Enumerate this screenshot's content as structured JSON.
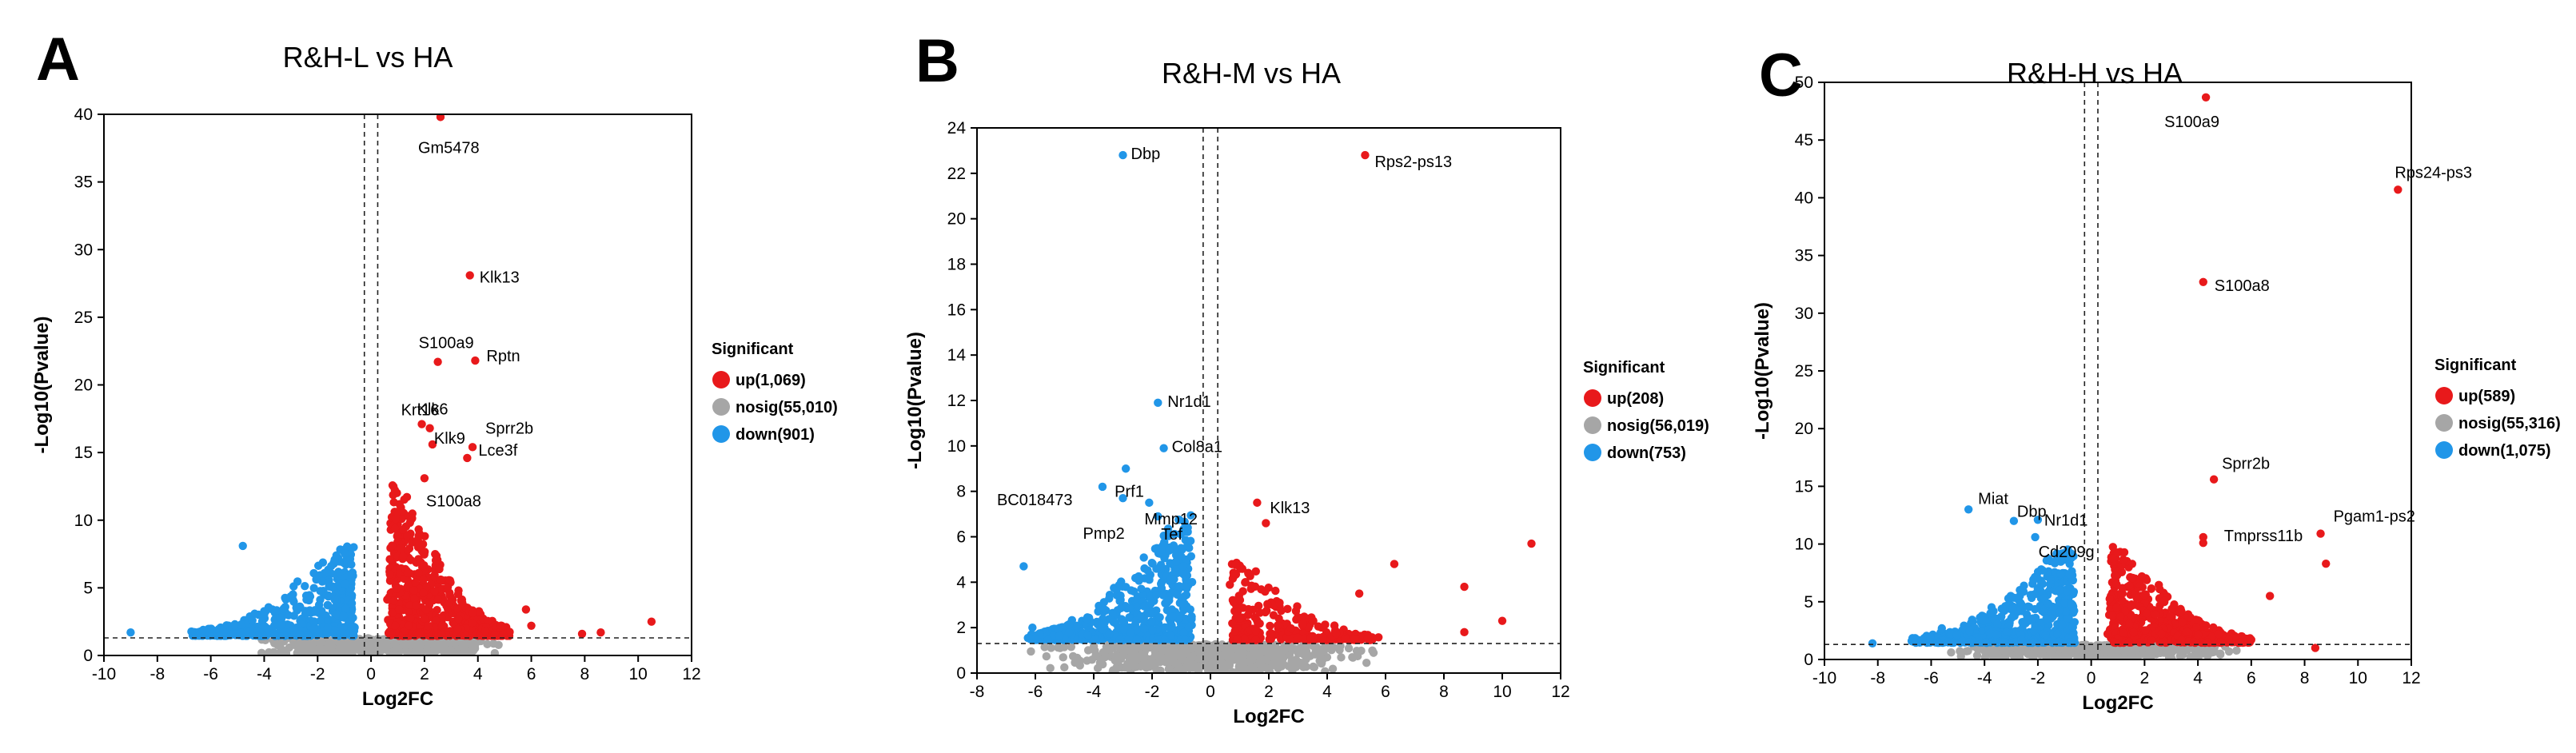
{
  "colors": {
    "up": "#e8191b",
    "nosig": "#a6a6a6",
    "down": "#2196e8"
  },
  "chart_data": [
    {
      "panel": "A",
      "type": "scatter",
      "title": "R&H-L vs HA",
      "xlabel": "Log2FC",
      "ylabel": "-Log10(Pvalue)",
      "xlim": [
        -10,
        12
      ],
      "ylim": [
        0,
        40
      ],
      "xticks": [
        -10,
        -8,
        -6,
        -4,
        -2,
        0,
        2,
        4,
        6,
        8,
        10,
        12
      ],
      "yticks": [
        0,
        5,
        10,
        15,
        20,
        25,
        30,
        35,
        40
      ],
      "fc_threshold": 0.25,
      "p_threshold": 1.3,
      "legend": {
        "title": "Significant",
        "items": [
          {
            "label": "up(1,069)",
            "group": "up"
          },
          {
            "label": "nosig(55,010)",
            "group": "nosig"
          },
          {
            "label": "down(901)",
            "group": "down"
          }
        ]
      },
      "labeled_genes": [
        {
          "name": "Gm5478",
          "x": 2.6,
          "y": 39.8,
          "group": "up"
        },
        {
          "name": "Klk13",
          "x": 3.7,
          "y": 28.1,
          "group": "up"
        },
        {
          "name": "S100a9",
          "x": 2.5,
          "y": 21.7,
          "group": "up"
        },
        {
          "name": "Rptn",
          "x": 3.9,
          "y": 21.8,
          "group": "up"
        },
        {
          "name": "Krt16",
          "x": 1.9,
          "y": 17.1,
          "group": "up"
        },
        {
          "name": "Klk6",
          "x": 2.2,
          "y": 16.8,
          "group": "up"
        },
        {
          "name": "Klk9",
          "x": 2.3,
          "y": 15.6,
          "group": "up"
        },
        {
          "name": "Sprr2b",
          "x": 3.8,
          "y": 15.4,
          "group": "up"
        },
        {
          "name": "Lce3f",
          "x": 3.6,
          "y": 14.6,
          "group": "up"
        },
        {
          "name": "S100a8",
          "x": 2.0,
          "y": 13.1,
          "group": "up"
        }
      ],
      "extra_points": [
        {
          "x": -9.0,
          "y": 1.7,
          "group": "down"
        },
        {
          "x": -4.8,
          "y": 8.1,
          "group": "down"
        },
        {
          "x": 10.5,
          "y": 2.5,
          "group": "up"
        },
        {
          "x": 8.6,
          "y": 1.7,
          "group": "up"
        },
        {
          "x": 7.9,
          "y": 1.6,
          "group": "up"
        },
        {
          "x": 6.0,
          "y": 2.2,
          "group": "up"
        },
        {
          "x": 5.8,
          "y": 3.4,
          "group": "up"
        }
      ],
      "cloud": {
        "seed": 11,
        "up": {
          "n": 700,
          "xmax": 5.0,
          "ymax": 12.5
        },
        "down": {
          "n": 520,
          "xmin": -6.5,
          "ymax": 8.0
        },
        "nosig": {
          "n": 650,
          "xmin": -5.0,
          "xmax": 5.5
        }
      }
    },
    {
      "panel": "B",
      "type": "scatter",
      "title": "R&H-M vs HA",
      "xlabel": "Log2FC",
      "ylabel": "-Log10(Pvalue)",
      "xlim": [
        -8,
        12
      ],
      "ylim": [
        0,
        24
      ],
      "xticks": [
        -8,
        -6,
        -4,
        -2,
        0,
        2,
        4,
        6,
        8,
        10,
        12
      ],
      "yticks": [
        0,
        2,
        4,
        6,
        8,
        10,
        12,
        14,
        16,
        18,
        20,
        22,
        24
      ],
      "fc_threshold": 0.25,
      "p_threshold": 1.3,
      "legend": {
        "title": "Significant",
        "items": [
          {
            "label": "up(208)",
            "group": "up"
          },
          {
            "label": "nosig(56,019)",
            "group": "nosig"
          },
          {
            "label": "down(753)",
            "group": "down"
          }
        ]
      },
      "labeled_genes": [
        {
          "name": "Dbp",
          "x": -3.0,
          "y": 22.8,
          "group": "down"
        },
        {
          "name": "Rps2-ps13",
          "x": 5.3,
          "y": 22.8,
          "group": "up"
        },
        {
          "name": "Nr1d1",
          "x": -1.8,
          "y": 11.9,
          "group": "down"
        },
        {
          "name": "Prf1",
          "x": -2.9,
          "y": 9.0,
          "group": "down"
        },
        {
          "name": "Col8a1",
          "x": -1.6,
          "y": 9.9,
          "group": "down"
        },
        {
          "name": "BC018473",
          "x": -3.7,
          "y": 8.2,
          "group": "down"
        },
        {
          "name": "Mmp12",
          "x": -2.1,
          "y": 7.5,
          "group": "down"
        },
        {
          "name": "Pmp2",
          "x": -3.0,
          "y": 7.7,
          "group": "down"
        },
        {
          "name": "Tef",
          "x": -1.8,
          "y": 6.9,
          "group": "down"
        },
        {
          "name": "Klk13",
          "x": 1.6,
          "y": 7.5,
          "group": "up"
        }
      ],
      "extra_points": [
        {
          "x": 11.0,
          "y": 5.7,
          "group": "up"
        },
        {
          "x": 10.0,
          "y": 2.3,
          "group": "up"
        },
        {
          "x": 8.7,
          "y": 3.8,
          "group": "up"
        },
        {
          "x": 8.7,
          "y": 1.8,
          "group": "up"
        },
        {
          "x": 6.3,
          "y": 4.8,
          "group": "up"
        },
        {
          "x": 5.1,
          "y": 3.5,
          "group": "up"
        },
        {
          "x": 1.9,
          "y": 6.6,
          "group": "up"
        },
        {
          "x": -6.4,
          "y": 4.7,
          "group": "down"
        },
        {
          "x": -6.1,
          "y": 2.0,
          "group": "down"
        }
      ],
      "cloud": {
        "seed": 23,
        "up": {
          "n": 260,
          "xmax": 5.5,
          "ymax": 4.8
        },
        "down": {
          "n": 560,
          "xmin": -6.0,
          "ymax": 6.8
        },
        "nosig": {
          "n": 650,
          "xmin": -6.5,
          "xmax": 6.5
        }
      }
    },
    {
      "panel": "C",
      "type": "scatter",
      "title": "R&H-H vs HA",
      "xlabel": "Log2FC",
      "ylabel": "-Log10(Pvalue)",
      "xlim": [
        -10,
        12
      ],
      "ylim": [
        0,
        50
      ],
      "xticks": [
        -10,
        -8,
        -6,
        -4,
        -2,
        0,
        2,
        4,
        6,
        8,
        10,
        12
      ],
      "yticks": [
        0,
        5,
        10,
        15,
        20,
        25,
        30,
        35,
        40,
        45,
        50
      ],
      "fc_threshold": 0.25,
      "p_threshold": 1.3,
      "legend": {
        "title": "Significant",
        "items": [
          {
            "label": "up(589)",
            "group": "up"
          },
          {
            "label": "nosig(55,316)",
            "group": "nosig"
          },
          {
            "label": "down(1,075)",
            "group": "down"
          }
        ]
      },
      "labeled_genes": [
        {
          "name": "S100a9",
          "x": 4.3,
          "y": 48.7,
          "group": "up"
        },
        {
          "name": "Rps24-ps3",
          "x": 11.5,
          "y": 40.7,
          "group": "up"
        },
        {
          "name": "S100a8",
          "x": 4.2,
          "y": 32.7,
          "group": "up"
        },
        {
          "name": "Sprr2b",
          "x": 4.6,
          "y": 15.6,
          "group": "up"
        },
        {
          "name": "Miat",
          "x": -4.6,
          "y": 13.0,
          "group": "down"
        },
        {
          "name": "Dbp",
          "x": -2.9,
          "y": 12.0,
          "group": "down"
        },
        {
          "name": "Nr1d1",
          "x": -2.0,
          "y": 12.1,
          "group": "down"
        },
        {
          "name": "Cd209g",
          "x": -2.1,
          "y": 10.6,
          "group": "down"
        },
        {
          "name": "Tmprss11b",
          "x": 4.2,
          "y": 10.6,
          "group": "up"
        },
        {
          "name": "Pgam1-ps2",
          "x": 8.6,
          "y": 10.9,
          "group": "up"
        }
      ],
      "extra_points": [
        {
          "x": 8.8,
          "y": 8.3,
          "group": "up"
        },
        {
          "x": 6.7,
          "y": 5.5,
          "group": "up"
        },
        {
          "x": 4.2,
          "y": 10.1,
          "group": "up"
        },
        {
          "x": 8.4,
          "y": 1.0,
          "group": "up"
        },
        {
          "x": -8.2,
          "y": 1.4,
          "group": "down"
        },
        {
          "x": -5.6,
          "y": 2.7,
          "group": "down"
        }
      ],
      "cloud": {
        "seed": 37,
        "up": {
          "n": 520,
          "xmax": 5.8,
          "ymax": 10.0
        },
        "down": {
          "n": 600,
          "xmin": -6.5,
          "ymax": 9.5
        },
        "nosig": {
          "n": 650,
          "xmin": -6.0,
          "xmax": 6.5
        }
      }
    }
  ]
}
